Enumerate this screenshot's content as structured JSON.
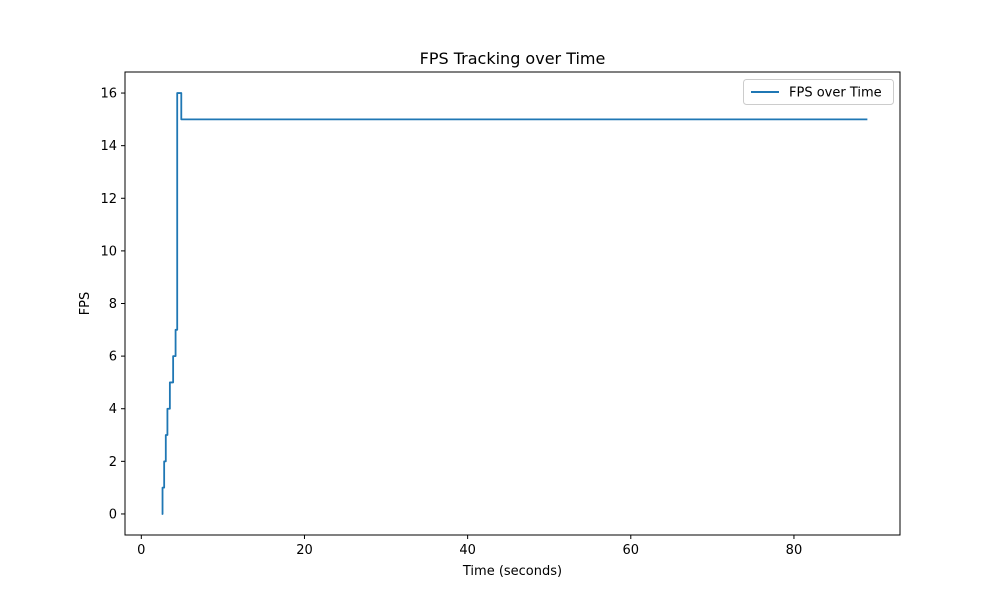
{
  "chart_data": {
    "type": "line",
    "title": "FPS Tracking over Time",
    "xlabel": "Time (seconds)",
    "ylabel": "FPS",
    "xlim": [
      -2.0,
      93.0
    ],
    "ylim": [
      -0.8,
      16.8
    ],
    "xticks": [
      0,
      20,
      40,
      60,
      80
    ],
    "yticks": [
      0,
      2,
      4,
      6,
      8,
      10,
      12,
      14,
      16
    ],
    "grid": false,
    "legend_position": "upper-right",
    "series": [
      {
        "name": "FPS over Time",
        "color": "#1f77b4",
        "x": [
          2.5,
          2.6,
          2.6,
          2.8,
          2.8,
          3.0,
          3.0,
          3.2,
          3.2,
          3.5,
          3.5,
          3.9,
          3.9,
          4.2,
          4.2,
          4.4,
          4.4,
          4.9,
          4.9,
          89.0
        ],
        "y": [
          0,
          0,
          1,
          1,
          2,
          2,
          3,
          3,
          4,
          4,
          5,
          5,
          6,
          6,
          7,
          7,
          16,
          16,
          15,
          15
        ]
      }
    ]
  }
}
